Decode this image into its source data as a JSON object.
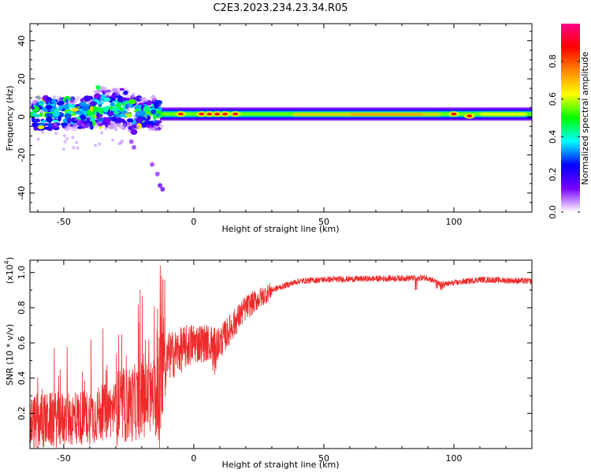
{
  "title": "C2E3.2023.234.23.34.R05",
  "chart_data": [
    {
      "type": "heatmap",
      "xlabel": "Height of straight line (km)",
      "ylabel": "Frequency (Hz)",
      "xlim": [
        -63,
        130
      ],
      "ylim": [
        -50,
        49
      ],
      "xticks": [
        -50,
        0,
        50,
        100
      ],
      "yticks": [
        40,
        20,
        0,
        -20,
        -40
      ],
      "xtick_labels": [
        "-50",
        "0",
        "50",
        "100"
      ],
      "ytick_labels": [
        "40",
        "20",
        "0",
        "-20",
        "-40"
      ],
      "colorbar": {
        "label": "Normalized spectral amplitude",
        "range": [
          0,
          1
        ],
        "ticks": [
          0.0,
          0.2,
          0.4,
          0.6,
          0.8
        ],
        "tick_labels": [
          "0.0",
          "0.2",
          "0.4",
          "0.6",
          "0.8"
        ],
        "colors": [
          "#ffffff",
          "#7a00ff",
          "#0000ff",
          "#00ffff",
          "#00ff00",
          "#ffff00",
          "#ff8800",
          "#ff0000",
          "#ff0088"
        ]
      },
      "band": {
        "center_hz": 1.5,
        "halfwidth_hz": 2.5,
        "start_km": -13,
        "end_km": 130
      },
      "hot_spots": [
        {
          "x": -5,
          "y": 1,
          "v": 0.85
        },
        {
          "x": 3,
          "y": 1,
          "v": 0.9
        },
        {
          "x": 6,
          "y": 1,
          "v": 0.85
        },
        {
          "x": 9,
          "y": 1,
          "v": 0.9
        },
        {
          "x": 12,
          "y": 1,
          "v": 0.85
        },
        {
          "x": 16,
          "y": 1,
          "v": 0.9
        },
        {
          "x": 100,
          "y": 1,
          "v": 0.9
        },
        {
          "x": 106,
          "y": 0,
          "v": 0.9
        }
      ],
      "scatter_region": {
        "x_from": -62,
        "x_to": -13,
        "y_from": -12,
        "y_to": 9
      },
      "tail_points": [
        {
          "x": -24,
          "y": -13
        },
        {
          "x": -23,
          "y": -16
        },
        {
          "x": -16,
          "y": -25
        },
        {
          "x": -14,
          "y": -30
        },
        {
          "x": -13,
          "y": -36
        },
        {
          "x": -12,
          "y": -38
        }
      ]
    },
    {
      "type": "line",
      "xlabel": "Height of straight line (km)",
      "ylabel": "SNR (10 * v/v)",
      "scale_label": "(x10",
      "scale_exp": "4",
      "scale_close": ")",
      "xlim": [
        -63,
        130
      ],
      "ylim": [
        0,
        1.07
      ],
      "xticks": [
        -50,
        0,
        50,
        100
      ],
      "yticks": [
        0.2,
        0.4,
        0.6,
        0.8,
        1.0
      ],
      "xtick_labels": [
        "-50",
        "0",
        "50",
        "100"
      ],
      "ytick_labels": [
        "0.2",
        "0.4",
        "0.6",
        "0.8",
        "1.0"
      ],
      "color": "#ee2a2a",
      "envelope": [
        {
          "x": -63,
          "y": 0.15
        },
        {
          "x": -40,
          "y": 0.18
        },
        {
          "x": -25,
          "y": 0.25
        },
        {
          "x": -15,
          "y": 0.3
        },
        {
          "x": -13,
          "y": 0.2
        },
        {
          "x": -10,
          "y": 0.52
        },
        {
          "x": 0,
          "y": 0.6
        },
        {
          "x": 10,
          "y": 0.6
        },
        {
          "x": 20,
          "y": 0.8
        },
        {
          "x": 30,
          "y": 0.9
        },
        {
          "x": 40,
          "y": 0.95
        },
        {
          "x": 50,
          "y": 0.96
        },
        {
          "x": 90,
          "y": 0.97
        },
        {
          "x": 95,
          "y": 0.93
        },
        {
          "x": 110,
          "y": 0.96
        },
        {
          "x": 130,
          "y": 0.95
        }
      ]
    }
  ]
}
